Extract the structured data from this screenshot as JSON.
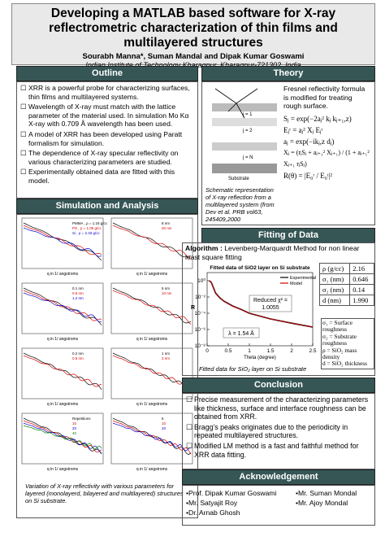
{
  "header": {
    "title": "Developing a MATLAB based software for X-ray reflectrometric characterization of thin films and multilayered structures",
    "authors": "Sourabh Manna*,  Suman Mandal and Dipak Kumar Goswami",
    "affiliation": "Indian Institute of Technology Kharagpur, Kharagpur-721302, India"
  },
  "outline": {
    "heading": "Outline",
    "items": [
      "XRR is a powerful probe for characterizing surfaces, thin films and multilayered systems.",
      "Wavelength of X-ray must match with the lattice parameter of the material used. In simulation Mo Kα X-ray with 0.709 Å wavelength has been used.",
      "A model of XRR has been developed using Paratt formalism for simulation.",
      "The dependence of X-ray specular reflectivity on various characterizing parameters are studied.",
      "Experimentally obtained data are fitted with this model."
    ]
  },
  "simulation": {
    "heading": "Simulation and Analysis",
    "xlabel": "q in 1/ angstroms",
    "legends": [
      [
        "PMMA , ρ = 1.18 g/cc",
        "PS , ρ = 1.05 g/cc",
        "Si , ρ = 2.33 g/cc"
      ],
      [
        "8 nm",
        "20 nm"
      ],
      [
        "0.1 nm",
        "0.6 nm",
        "1.2 nm"
      ],
      [
        "5 nm",
        "10 nm"
      ],
      [
        "0.2 nm",
        "0.8 nm"
      ],
      [
        "1 nm",
        "3 nm"
      ],
      [
        "Repetitions",
        "10",
        "20",
        "40"
      ],
      [
        "5",
        "10",
        "20"
      ]
    ],
    "caption": "Variation of X-ray reflectivity with various parameters for layered  (monolayerd, bilayered and multilayered) structures on Si substrate."
  },
  "theory": {
    "heading": "Theory",
    "intro": "Fresnel reflectivity formula is modified for treating rough surface.",
    "equations": [
      "Sⱼ = exp(−2aⱼ² kⱼ kⱼ₊₁,z)",
      "Eⱼʳ = aⱼ² Xⱼ Eⱼᵗ",
      "aⱼ = exp(−ikⱼ,z dⱼ)",
      "Xⱼ = (rⱼSⱼ + aⱼ₊₁² Xⱼ₊₁) / (1 + aⱼ₊₁² Xⱼ₊₁ rⱼSⱼ)",
      "R(θ) = |E₀ʳ / E₀ᵗ|²"
    ],
    "diagram_labels": [
      "Substrate",
      "j = 1",
      "j = 2",
      "j = N"
    ],
    "caption": "Schematic representation  of X-ray reflection from a multilayered system (from Dev et al. PRB vol63, 245409,2000"
  },
  "fitting": {
    "heading": "Fitting of Data",
    "algorithm_label": "Algorithm :",
    "algorithm": "Levenberg-Marquardt Method for non linear least square fitting",
    "table": [
      [
        "ρ (g/cc)",
        "2.16"
      ],
      [
        "σ₁ (nm)",
        "0.646"
      ],
      [
        "σ₂ (nm)",
        "0.14"
      ],
      [
        "d (nm)",
        "1.990"
      ]
    ],
    "notes": [
      "σ₁ = Surface roughness",
      "σ₂ = Substrate roughness",
      "ρ = SiO₂ mass density",
      "d = SiO₂ thickness"
    ],
    "caption": "Fitted data for SiO₂ layer on Si substrate",
    "chart_data": {
      "type": "line",
      "title": "Fitted data of SiO2 layer on Si substrate",
      "x_label": "Theta (degree)",
      "y_label": "R",
      "log_y": true,
      "x": [
        0.05,
        0.1,
        0.2,
        0.3,
        0.4,
        0.6,
        0.8,
        1.0,
        1.5,
        2.0,
        2.5
      ],
      "series": [
        {
          "name": "Experimental",
          "color": "#000000",
          "values": [
            1,
            0.6,
            0.03,
            0.008,
            0.003,
            0.0008,
            0.0003,
            0.0001,
            2e-05,
            6e-06,
            2e-06
          ]
        },
        {
          "name": "Model",
          "color": "#d00000",
          "values": [
            1,
            0.58,
            0.028,
            0.0078,
            0.0029,
            0.00078,
            0.00029,
            0.0001,
            2e-05,
            6e-06,
            2e-06
          ]
        }
      ],
      "xlim": [
        0,
        2.5
      ],
      "xticks": [
        0,
        0.5,
        1,
        1.5,
        2,
        {
          "value": 2.5,
          "label": "2.5"
        }
      ],
      "ylim": [
        1e-08,
        10
      ],
      "yticks": [
        {
          "value": 1,
          "label": "10⁰"
        },
        {
          "value": 0.01,
          "label": "10⁻²"
        },
        {
          "value": 0.0001,
          "label": "10⁻⁴"
        },
        {
          "value": 1e-06,
          "label": "10⁻⁶"
        },
        {
          "value": 1e-08,
          "label": "10⁻⁸"
        }
      ],
      "annotations": [
        "Reduced χ² =",
        "1.0055",
        "λ = 1.54 Å"
      ]
    }
  },
  "conclusion": {
    "heading": "Conclusion",
    "items": [
      "Precise measurement of the characterizing parameters like thickness, surface and interface roughness can be obtained from XRR.",
      "Bragg’s peaks originates due to the periodicity in repeated multilayered structures.",
      "Modified LM method is a fast and faithful method for XRR data fitting."
    ]
  },
  "acknowledgement": {
    "heading": "Acknowledgement",
    "names": [
      "•Prof. Dipak Kumar Goswami",
      "•Mr. Suman Mondal",
      "•Mr. Satyajit Roy",
      "•Mr. Ajoy Mondal",
      "•Dr. Arnab Ghosh"
    ]
  }
}
